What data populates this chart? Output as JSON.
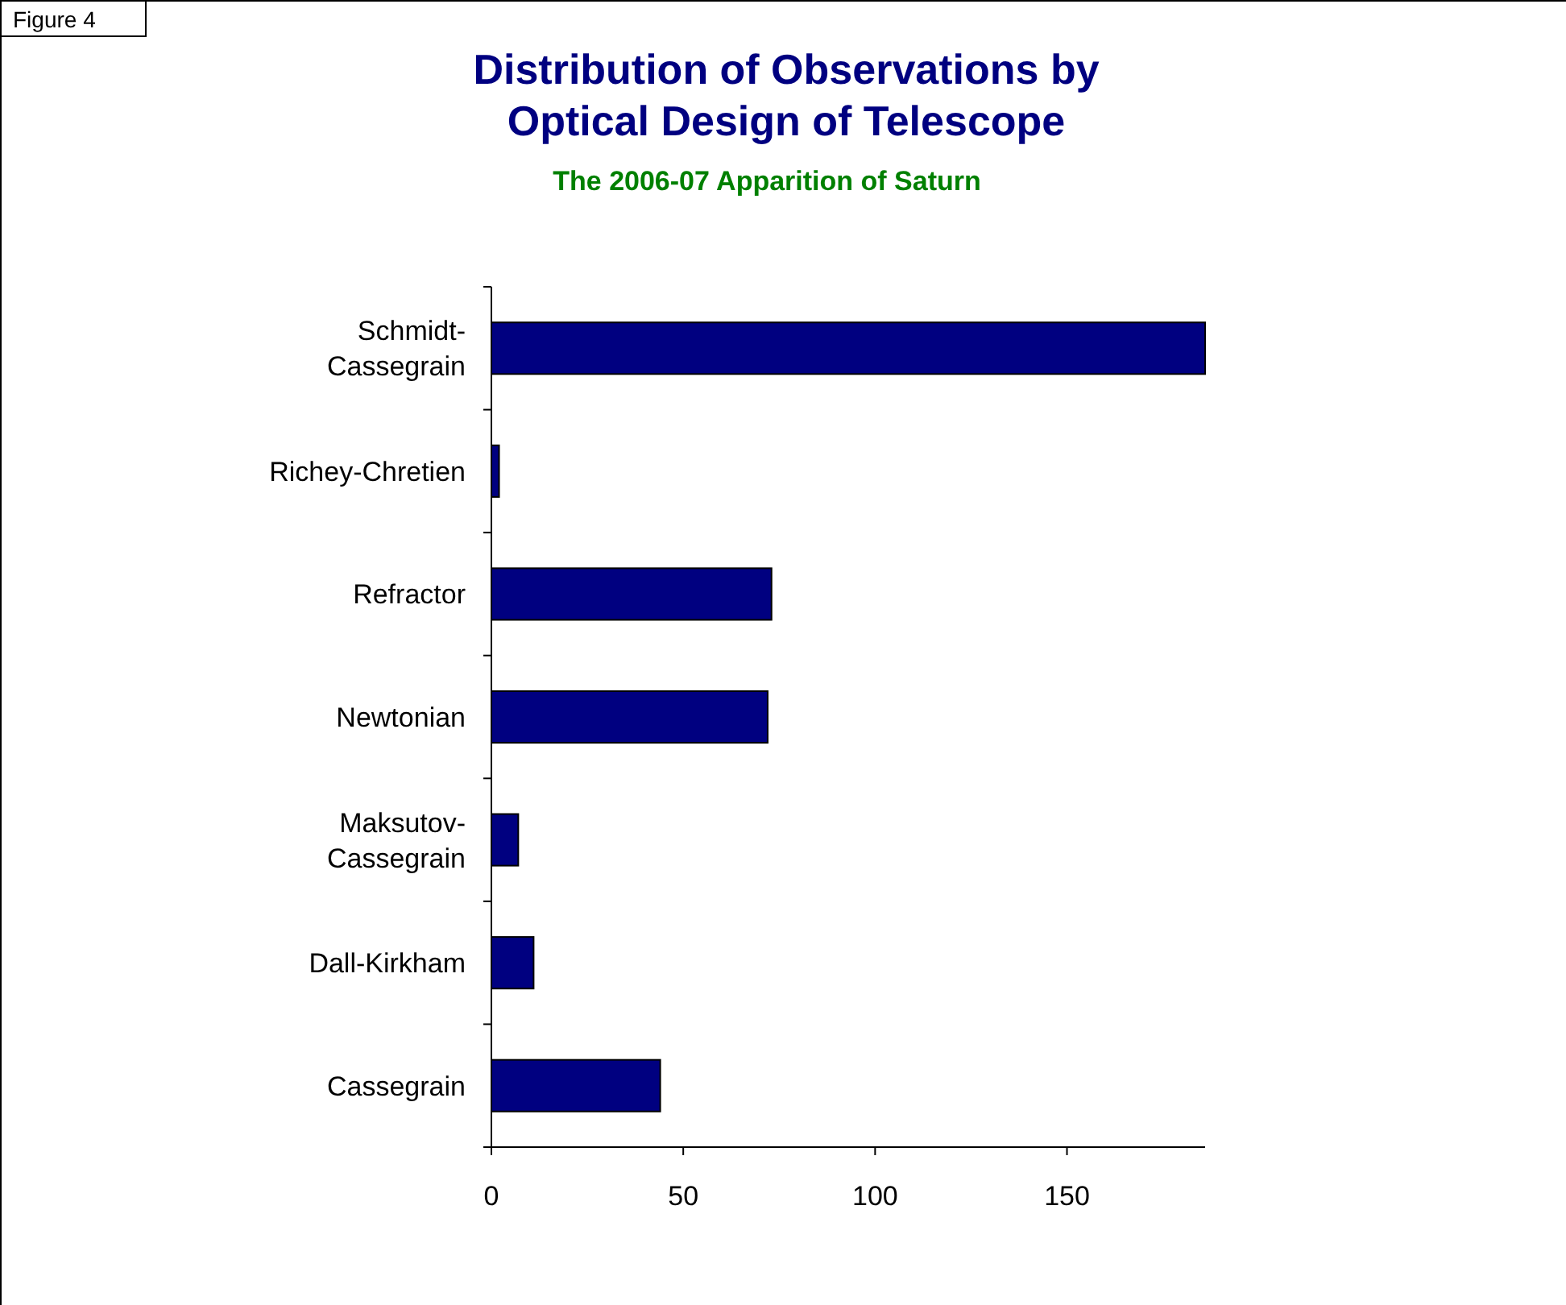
{
  "chart_data": {
    "type": "bar",
    "orientation": "horizontal",
    "title": "Distribution of Observations by Optical Design of Telescope",
    "subtitle": "The 2006-07 Apparition of Saturn",
    "annotations": [
      "Figure 4"
    ],
    "categories": [
      "Schmidt-Cassegrain",
      "Richey-Chretien",
      "Refractor",
      "Newtonian",
      "Maksutov-Cassegrain",
      "Dall-Kirkham",
      "Cassegrain"
    ],
    "values": [
      186,
      2,
      73,
      72,
      7,
      11,
      44
    ],
    "color": "#000080",
    "xlim": [
      0,
      186
    ],
    "xticks": [
      0,
      50,
      100,
      150
    ]
  }
}
